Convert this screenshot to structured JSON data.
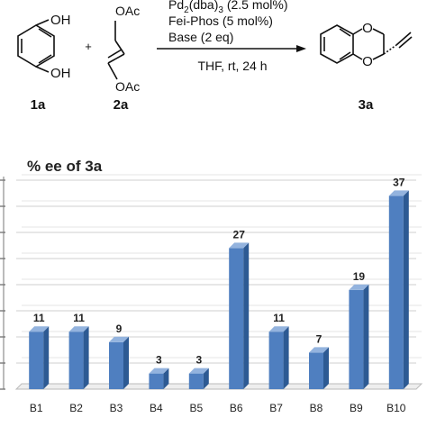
{
  "scheme": {
    "reactant1_substituent1": "OH",
    "reactant1_substituent2": "OH",
    "reactant1_label": "1a",
    "plus": "+",
    "reactant2_substituent1": "OAc",
    "reactant2_substituent2": "OAc",
    "reactant2_label": "2a",
    "catalyst_main": "Pd",
    "catalyst_sub1": "2",
    "catalyst_mid": "(dba)",
    "catalyst_sub2": "3",
    "catalyst_loading": " (2.5 mol%)",
    "ligand": "Fei-Phos (5 mol%)",
    "base": "Base (2 eq)",
    "conditions": "THF, rt, 24 h",
    "product_label": "3a"
  },
  "chart_data": {
    "type": "bar",
    "title": "% ee of 3a",
    "xlabel": "",
    "ylabel": "",
    "categories": [
      "B1",
      "B2",
      "B3",
      "B4",
      "B5",
      "B6",
      "B7",
      "B8",
      "B9",
      "B10"
    ],
    "values": [
      11,
      11,
      9,
      3,
      3,
      27,
      11,
      7,
      19,
      37
    ],
    "data_labels": [
      "11",
      "11",
      "9",
      "3",
      "3",
      "27",
      "11",
      "7",
      "19",
      "37"
    ],
    "ylim": [
      0,
      40
    ],
    "grid": true,
    "bar_color": "#4f7fc0",
    "bar_side_color": "#2d5a93",
    "bar_top_color": "#93b3de"
  }
}
